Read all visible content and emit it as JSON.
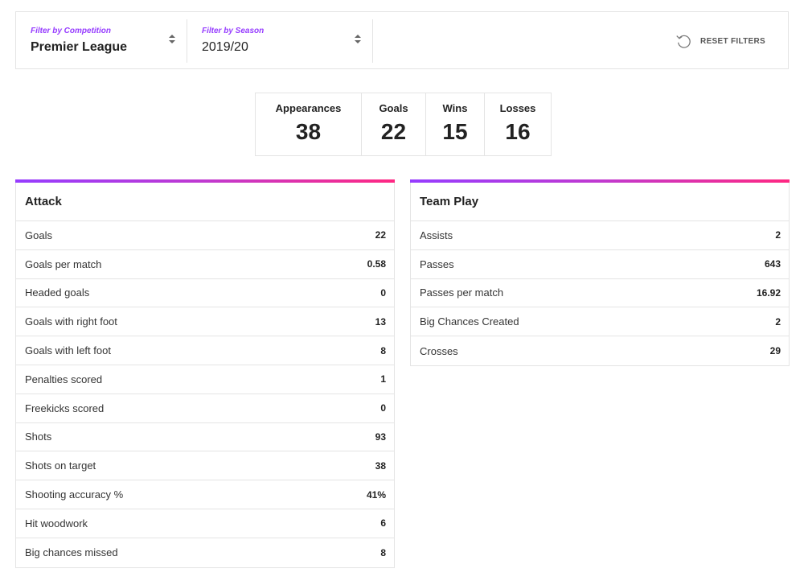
{
  "filters": {
    "competition": {
      "label": "Filter by Competition",
      "value": "Premier League"
    },
    "season": {
      "label": "Filter by Season",
      "value": "2019/20"
    },
    "reset_label": "RESET FILTERS"
  },
  "summary": [
    {
      "label": "Appearances",
      "value": "38"
    },
    {
      "label": "Goals",
      "value": "22"
    },
    {
      "label": "Wins",
      "value": "15"
    },
    {
      "label": "Losses",
      "value": "16"
    }
  ],
  "attack": {
    "title": "Attack",
    "rows": [
      {
        "label": "Goals",
        "value": "22"
      },
      {
        "label": "Goals per match",
        "value": "0.58"
      },
      {
        "label": "Headed goals",
        "value": "0"
      },
      {
        "label": "Goals with right foot",
        "value": "13"
      },
      {
        "label": "Goals with left foot",
        "value": "8"
      },
      {
        "label": "Penalties scored",
        "value": "1"
      },
      {
        "label": "Freekicks scored",
        "value": "0"
      },
      {
        "label": "Shots",
        "value": "93"
      },
      {
        "label": "Shots on target",
        "value": "38"
      },
      {
        "label": "Shooting accuracy %",
        "value": "41%"
      },
      {
        "label": "Hit woodwork",
        "value": "6"
      },
      {
        "label": "Big chances missed",
        "value": "8"
      }
    ]
  },
  "team_play": {
    "title": "Team Play",
    "rows": [
      {
        "label": "Assists",
        "value": "2"
      },
      {
        "label": "Passes",
        "value": "643"
      },
      {
        "label": "Passes per match",
        "value": "16.92"
      },
      {
        "label": "Big Chances Created",
        "value": "2"
      },
      {
        "label": "Crosses",
        "value": "29"
      }
    ]
  },
  "colors": {
    "accent_purple": "#963cff",
    "accent_pink": "#ff2882",
    "border": "#e4e4e4"
  }
}
